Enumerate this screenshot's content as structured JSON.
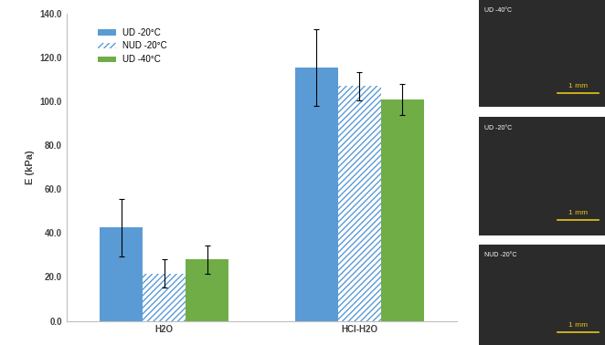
{
  "chart_data": {
    "type": "bar",
    "ylabel": "E (kPa)",
    "categories": [
      "H2O",
      "HCl-H2O"
    ],
    "series": [
      {
        "name": "UD -20°C",
        "color": "#5b9bd5",
        "values": [
          42.5,
          115.5
        ],
        "errors": [
          13.0,
          17.5
        ]
      },
      {
        "name": "NUD -20°C",
        "color": "#5b9bd5",
        "values": [
          21.5,
          107.0
        ],
        "errors": [
          6.5,
          6.5
        ]
      },
      {
        "name": "UD -40°C",
        "color": "#70ad47",
        "values": [
          28.0,
          101.0
        ],
        "errors": [
          6.5,
          7.0
        ]
      }
    ],
    "ylim": [
      0,
      140
    ],
    "yticks": [
      {
        "value": 0,
        "label": "0.0"
      },
      {
        "value": 20,
        "label": "20.0"
      },
      {
        "value": 40,
        "label": "40.0"
      },
      {
        "value": 60,
        "label": "60.0"
      },
      {
        "value": 80,
        "label": "80.0"
      },
      {
        "value": 100,
        "label": "100.0"
      },
      {
        "value": 120,
        "label": "120.0"
      },
      {
        "value": 140,
        "label": "140.0"
      }
    ],
    "grid": false,
    "legend": "upper left"
  },
  "images": [
    {
      "label": "UD -40°C",
      "scale_bar": "1 mm"
    },
    {
      "label": "UD -20°C",
      "scale_bar": "1 mm"
    },
    {
      "label": "NUD -20°C",
      "scale_bar": "1 mm"
    }
  ]
}
